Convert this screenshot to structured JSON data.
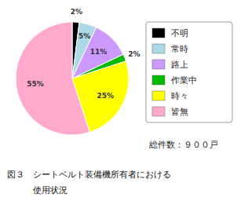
{
  "chart_data": {
    "type": "pie",
    "title": "図３　シートベルト装備機所有者における",
    "subtitle": "　　　使用状況",
    "annotations": [
      "総件数：９００戸"
    ],
    "categories": [
      "不明",
      "常時",
      "路上",
      "作業中",
      "時々",
      "皆無"
    ],
    "values": [
      2,
      5,
      11,
      2,
      25,
      55
    ],
    "value_labels": [
      "2%",
      "5%",
      "11%",
      "2%",
      "25%",
      "55%"
    ],
    "colors": [
      "#000000",
      "#add8e6",
      "#cc99ff",
      "#00bb00",
      "#ffff00",
      "#ffaacc"
    ],
    "data_labels": true,
    "legend": "right"
  }
}
